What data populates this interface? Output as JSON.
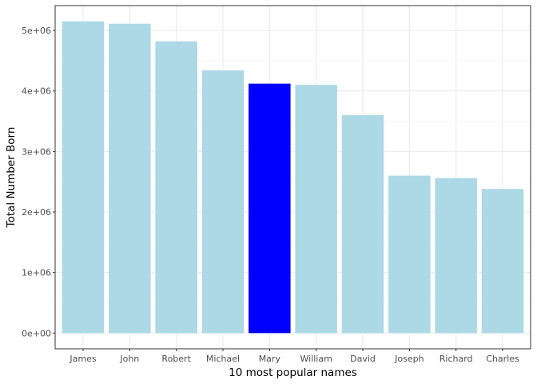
{
  "chart_data": {
    "type": "bar",
    "title": "",
    "xlabel": "10 most popular names",
    "ylabel": "Total Number Born",
    "categories": [
      "James",
      "John",
      "Robert",
      "Michael",
      "Mary",
      "William",
      "David",
      "Joseph",
      "Richard",
      "Charles"
    ],
    "values": [
      5150000,
      5110000,
      4820000,
      4340000,
      4120000,
      4100000,
      3600000,
      2600000,
      2560000,
      2380000
    ],
    "highlight": "Mary",
    "ylim": [
      -260000,
      5410000
    ],
    "yticks": [
      0,
      1000000,
      2000000,
      3000000,
      4000000,
      5000000
    ],
    "ytick_labels": [
      "0e+00",
      "1e+06",
      "2e+06",
      "3e+06",
      "4e+06",
      "5e+06"
    ],
    "grid": true,
    "colors": {
      "bar": "#add8e6",
      "highlight": "#0000ff",
      "grid_major": "#ebebeb",
      "grid_minor": "#f5f5f5",
      "panel_border": "#333333"
    }
  }
}
